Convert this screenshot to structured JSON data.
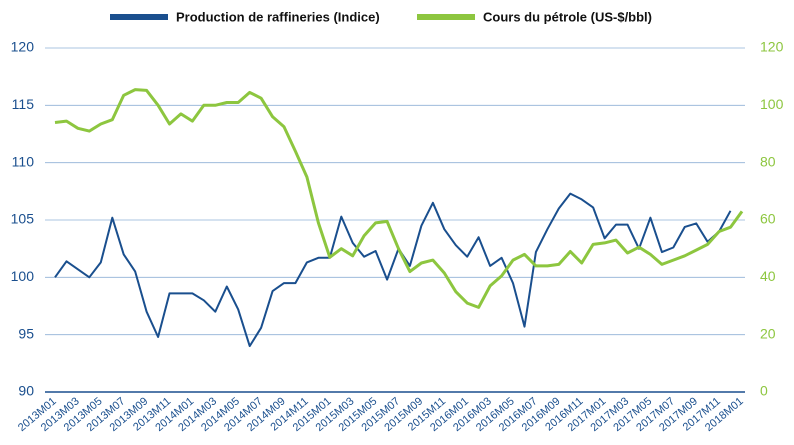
{
  "chart_data": {
    "type": "line",
    "categories": [
      "2013M01",
      null,
      "2013M03",
      null,
      "2013M05",
      null,
      "2013M07",
      null,
      "2013M09",
      null,
      "2013M11",
      null,
      "2014M01",
      null,
      "2014M03",
      null,
      "2014M05",
      null,
      "2014M07",
      null,
      "2014M09",
      null,
      "2014M11",
      null,
      "2015M01",
      null,
      "2015M03",
      null,
      "2015M05",
      null,
      "2015M07",
      null,
      "2015M09",
      null,
      "2015M11",
      null,
      "2016M01",
      null,
      "2016M03",
      null,
      "2016M05",
      null,
      "2016M07",
      null,
      "2016M09",
      null,
      "2016M11",
      null,
      "2017M01",
      null,
      "2017M03",
      null,
      "2017M05",
      null,
      "2017M07",
      null,
      "2017M09",
      null,
      "2017M11",
      null,
      "2018M01"
    ],
    "series": [
      {
        "name": "Production de raffineries (Indice)",
        "color": "#1a4f8e",
        "values": [
          100,
          101.4,
          100.7,
          100,
          101.3,
          105.2,
          102,
          100.5,
          97,
          94.8,
          98.6,
          98.6,
          98.6,
          98,
          97,
          99.2,
          97.2,
          94,
          95.6,
          98.8,
          99.5,
          99.5,
          101.3,
          101.7,
          101.7,
          105.3,
          103,
          101.8,
          102.3,
          99.8,
          102.5,
          101,
          104.5,
          106.5,
          104.2,
          102.8,
          101.8,
          103.5,
          101,
          101.7,
          99.5,
          95.7,
          102.2,
          104.2,
          106,
          107.3,
          106.8,
          106.1,
          103.4,
          104.6,
          104.6,
          102.5,
          105.2,
          102.2,
          102.6,
          104.4,
          104.7,
          103.1,
          104,
          105.8,
          null
        ]
      },
      {
        "name": "Cours du pétrole (US-$/bbl)",
        "color": "#8dc63f",
        "axis": "y2",
        "values": [
          94,
          94.5,
          92,
          91,
          93.5,
          95,
          103.5,
          105.5,
          105.2,
          100,
          93.5,
          97,
          94.5,
          100,
          100,
          101,
          101,
          104.5,
          102.5,
          96,
          92.5,
          84,
          75,
          59,
          47,
          50,
          47.5,
          54.5,
          59,
          59.5,
          50,
          42,
          45,
          46,
          41.5,
          35,
          31,
          29.5,
          37,
          40.5,
          46,
          48,
          44,
          44,
          44.5,
          49,
          45,
          51.5,
          52,
          53,
          48.5,
          50.5,
          48,
          44.5,
          46,
          47.5,
          49.5,
          51.5,
          56,
          57.5,
          63
        ]
      }
    ],
    "ylim": [
      90,
      120
    ],
    "yticks": [
      90,
      95,
      100,
      105,
      110,
      115,
      120
    ],
    "y2lim": [
      0,
      120
    ],
    "y2ticks": [
      0,
      20,
      40,
      60,
      80,
      100,
      120
    ],
    "grid": true,
    "legend": "top"
  }
}
